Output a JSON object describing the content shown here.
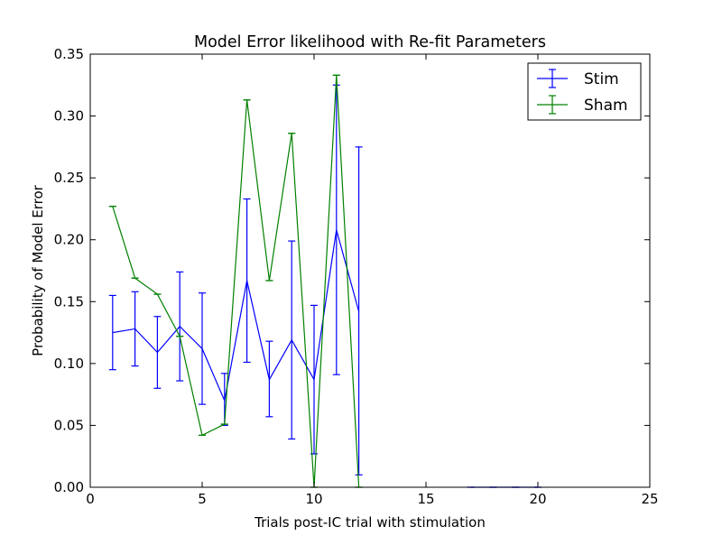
{
  "chart_data": {
    "type": "line",
    "title": "Model Error likelihood with Re-fit Parameters",
    "xlabel": "Trials post-IC trial with stimulation",
    "ylabel": "Probability of Model Error",
    "xlim": [
      0,
      25
    ],
    "ylim": [
      0,
      0.35
    ],
    "xticks": [
      0,
      5,
      10,
      15,
      20,
      25
    ],
    "xtick_labels": [
      "0",
      "5",
      "10",
      "15",
      "20",
      "25"
    ],
    "yticks": [
      0,
      0.05,
      0.1,
      0.15,
      0.2,
      0.25,
      0.3,
      0.35
    ],
    "ytick_labels": [
      "0.00",
      "0.05",
      "0.10",
      "0.15",
      "0.20",
      "0.25",
      "0.30",
      "0.35"
    ],
    "grid": false,
    "legend_position": "top-right",
    "series": [
      {
        "name": "Stim",
        "color": "#0000ff",
        "x": [
          1,
          2,
          3,
          4,
          5,
          6,
          7,
          8,
          9,
          10,
          11,
          12,
          13,
          14,
          15,
          16,
          17,
          18,
          19,
          20
        ],
        "y": [
          0.125,
          0.128,
          0.109,
          0.13,
          0.112,
          0.07,
          0.167,
          0.087,
          0.119,
          0.087,
          0.208,
          0.142,
          null,
          null,
          null,
          null,
          0.0,
          0.0,
          0.0,
          0.0
        ],
        "err_low": [
          0.095,
          0.098,
          0.08,
          0.086,
          0.067,
          0.05,
          0.101,
          0.057,
          0.039,
          0.027,
          0.091,
          0.01,
          null,
          null,
          null,
          null,
          0.0,
          0.0,
          0.0,
          0.0
        ],
        "err_high": [
          0.155,
          0.158,
          0.138,
          0.174,
          0.157,
          0.092,
          0.233,
          0.118,
          0.199,
          0.147,
          0.325,
          0.275,
          null,
          null,
          null,
          null,
          0.0,
          0.0,
          0.0,
          0.0
        ]
      },
      {
        "name": "Sham",
        "color": "#008000",
        "x": [
          1,
          2,
          3,
          4,
          5,
          6,
          7,
          8,
          9,
          10,
          11,
          12
        ],
        "y": [
          0.227,
          0.169,
          0.156,
          0.122,
          0.042,
          0.051,
          0.313,
          0.167,
          0.286,
          0.0,
          0.333,
          0.0
        ],
        "err_low": [
          0.227,
          0.169,
          0.156,
          0.122,
          0.042,
          0.051,
          0.313,
          0.167,
          0.286,
          0.0,
          0.333,
          0.0
        ],
        "err_high": [
          0.227,
          0.169,
          0.156,
          0.122,
          0.042,
          0.051,
          0.313,
          0.167,
          0.286,
          0.0,
          0.333,
          0.0
        ]
      }
    ]
  }
}
